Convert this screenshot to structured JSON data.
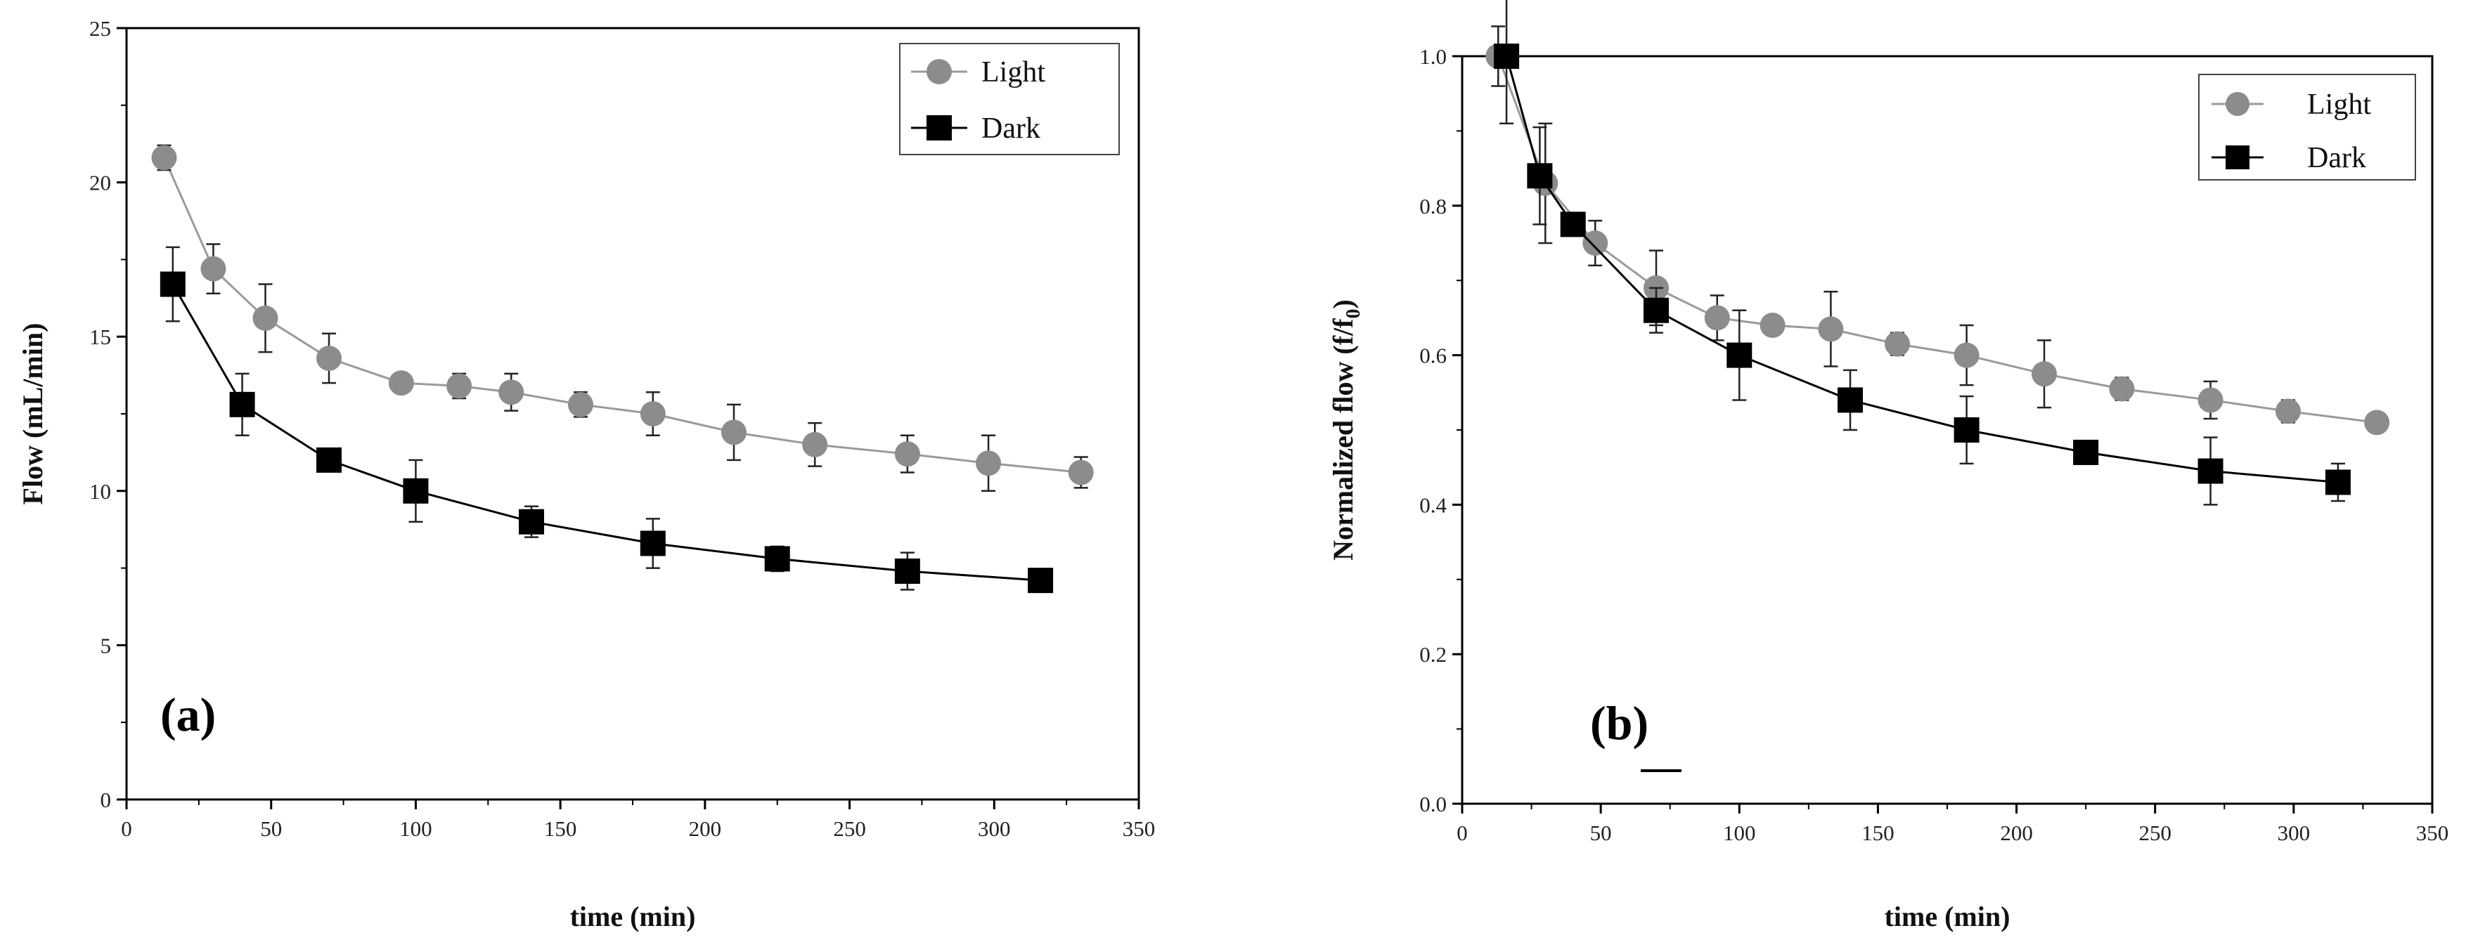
{
  "chart_data": [
    {
      "type": "line",
      "panel_label": "(a)",
      "xlabel": "time (min)",
      "ylabel": "Flow (mL/min)",
      "xlim": [
        0,
        350
      ],
      "ylim": [
        0,
        25
      ],
      "xticks": [
        0,
        50,
        100,
        150,
        200,
        250,
        300,
        350
      ],
      "yticks": [
        0,
        5,
        10,
        15,
        20,
        25
      ],
      "legend_position": "top-right",
      "series": [
        {
          "name": "Light",
          "marker": "circle",
          "color": "#8c8c8c",
          "line_color": "#9a9a9a",
          "x": [
            13,
            30,
            48,
            70,
            95,
            115,
            133,
            157,
            182,
            210,
            238,
            270,
            298,
            330
          ],
          "y": [
            20.8,
            17.2,
            15.6,
            14.3,
            13.5,
            13.4,
            13.2,
            12.8,
            12.5,
            11.9,
            11.5,
            11.2,
            10.9,
            10.6
          ],
          "err": [
            0.4,
            0.8,
            1.1,
            0.8,
            0.3,
            0.4,
            0.6,
            0.4,
            0.7,
            0.9,
            0.7,
            0.6,
            0.9,
            0.5
          ]
        },
        {
          "name": "Dark",
          "marker": "square",
          "color": "#000000",
          "line_color": "#000000",
          "x": [
            16,
            40,
            70,
            100,
            140,
            182,
            225,
            270,
            316
          ],
          "y": [
            16.7,
            12.8,
            11.0,
            10.0,
            9.0,
            8.3,
            7.8,
            7.4,
            7.1
          ],
          "err": [
            1.2,
            1.0,
            0.3,
            1.0,
            0.5,
            0.8,
            0.4,
            0.6,
            0.3
          ]
        }
      ]
    },
    {
      "type": "line",
      "panel_label": "(b)",
      "xlabel": "time (min)",
      "ylabel": "Normalized flow (f/f",
      "ylabel_sub": "0",
      "ylabel_end": ")",
      "xlim": [
        0,
        350
      ],
      "ylim": [
        0,
        1.0
      ],
      "xticks": [
        0,
        50,
        100,
        150,
        200,
        250,
        300,
        350
      ],
      "yticks": [
        0.0,
        0.2,
        0.4,
        0.6,
        0.8,
        1.0
      ],
      "ytick_labels": [
        "0.0",
        "0.2",
        "0.4",
        "0.6",
        "0.8",
        "1.0"
      ],
      "legend_position": "top-right",
      "series": [
        {
          "name": "Light",
          "marker": "circle",
          "color": "#8c8c8c",
          "line_color": "#9a9a9a",
          "x": [
            13,
            30,
            48,
            70,
            92,
            112,
            133,
            157,
            182,
            210,
            238,
            270,
            298,
            330
          ],
          "y": [
            1.0,
            0.83,
            0.75,
            0.69,
            0.65,
            0.64,
            0.635,
            0.615,
            0.6,
            0.575,
            0.555,
            0.54,
            0.525,
            0.51
          ],
          "err": [
            0.04,
            0.08,
            0.03,
            0.05,
            0.03,
            0.01,
            0.05,
            0.015,
            0.04,
            0.045,
            0.015,
            0.025,
            0.015,
            0.01
          ]
        },
        {
          "name": "Dark",
          "marker": "square",
          "color": "#000000",
          "line_color": "#000000",
          "x": [
            16,
            28,
            40,
            70,
            100,
            140,
            182,
            225,
            270,
            316
          ],
          "y": [
            1.0,
            0.84,
            0.775,
            0.66,
            0.6,
            0.54,
            0.5,
            0.47,
            0.445,
            0.43
          ],
          "err": [
            0.09,
            0.065,
            0.01,
            0.03,
            0.06,
            0.04,
            0.045,
            0.01,
            0.045,
            0.025
          ]
        }
      ]
    }
  ]
}
